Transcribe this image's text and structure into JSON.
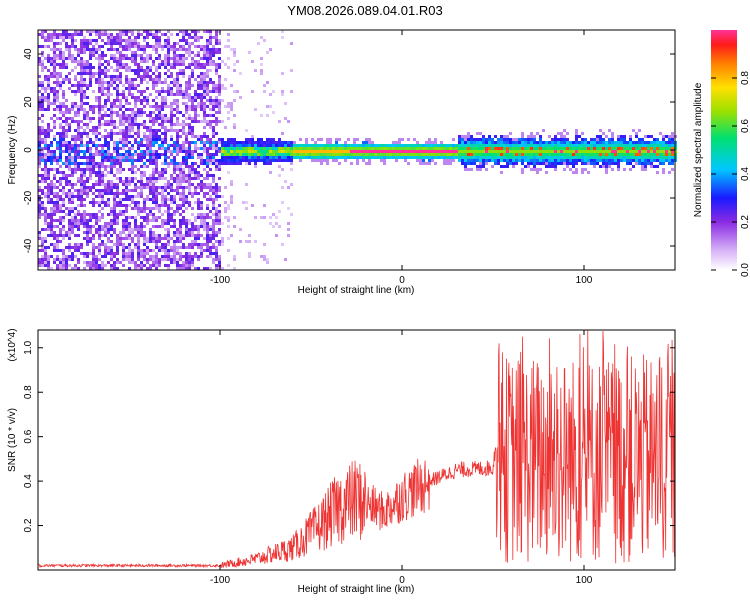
{
  "title": "YM08.2026.089.04.01.R03",
  "chart_data": [
    {
      "type": "heatmap",
      "xlabel": "Height of straight line (km)",
      "ylabel": "Frequency (Hz)",
      "xlim": [
        -200,
        150
      ],
      "ylim": [
        -50,
        50
      ],
      "xticks": [
        -100,
        0,
        100
      ],
      "yticks": [
        -40,
        -20,
        0,
        20,
        40
      ],
      "colorbar": {
        "label": "Normalized spectral amplitude",
        "range": [
          0,
          1
        ],
        "ticks": [
          0.0,
          0.2,
          0.4,
          0.6,
          0.8
        ]
      },
      "regions": [
        {
          "x_range": [
            -200,
            -100
          ],
          "description": "broadband noise across all frequencies",
          "amplitude": 0.15
        },
        {
          "x_range": [
            -100,
            -60
          ],
          "description": "sparse noise, narrow band near 0 Hz",
          "amplitude": 0.4
        },
        {
          "x_range": [
            -60,
            30
          ],
          "description": "narrow band at 0 Hz, strongest",
          "amplitude": 0.95
        },
        {
          "x_range": [
            30,
            150
          ],
          "description": "band near 0 Hz with moderate spread",
          "amplitude": 0.55
        }
      ]
    },
    {
      "type": "line",
      "xlabel": "Height of straight line (km)",
      "ylabel": "SNR (10 * v/v)",
      "y_multiplier": "(x10^4)",
      "xlim": [
        -200,
        150
      ],
      "ylim": [
        0,
        1.08
      ],
      "xticks": [
        -100,
        0,
        100
      ],
      "yticks": [
        0.2,
        0.4,
        0.6,
        0.8,
        1.0
      ],
      "color": "#ee3333",
      "envelope": [
        {
          "x": -200,
          "y": 0.02
        },
        {
          "x": -100,
          "y": 0.02
        },
        {
          "x": -80,
          "y": 0.05
        },
        {
          "x": -60,
          "y": 0.1
        },
        {
          "x": -45,
          "y": 0.2
        },
        {
          "x": -35,
          "y": 0.28
        },
        {
          "x": -25,
          "y": 0.32
        },
        {
          "x": -10,
          "y": 0.26
        },
        {
          "x": 0,
          "y": 0.33
        },
        {
          "x": 15,
          "y": 0.4
        },
        {
          "x": 30,
          "y": 0.45
        },
        {
          "x": 50,
          "y": 0.46
        },
        {
          "x": 52,
          "y": 0.6
        },
        {
          "x": 150,
          "y": 0.55
        }
      ]
    }
  ]
}
